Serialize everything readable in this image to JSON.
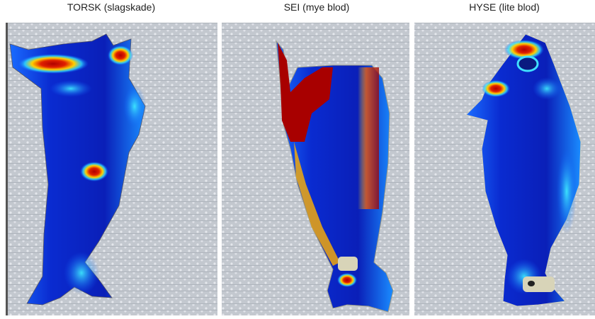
{
  "panels": [
    {
      "label": "TORSK (slagskade)"
    },
    {
      "label": "SEI (mye blod)"
    },
    {
      "label": "HYSE (lite blod)"
    }
  ]
}
